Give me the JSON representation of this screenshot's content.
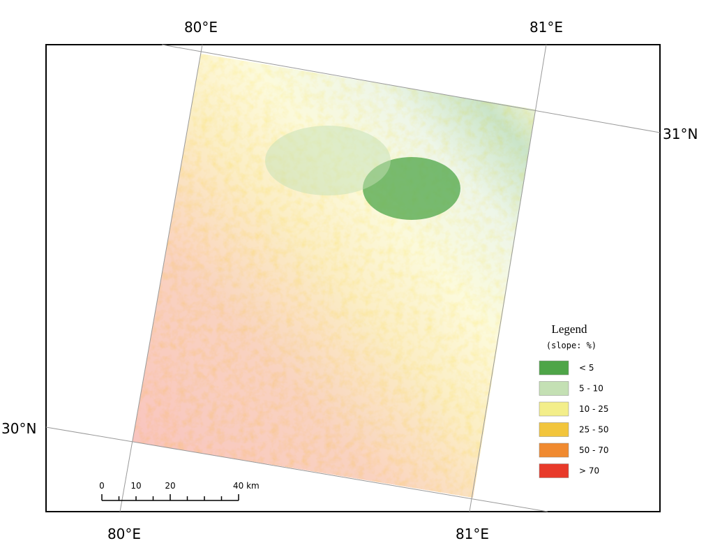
{
  "map": {
    "graticule_labels": {
      "top_west": "80°E",
      "top_east": "81°E",
      "right": "31°N",
      "left": "30°N",
      "bottom_west": "80°E",
      "bottom_east": "81°E"
    },
    "legend": {
      "title": "Legend",
      "subtitle": "(slope: %)",
      "items": [
        {
          "label": "< 5",
          "color": "#4ea548"
        },
        {
          "label": "5 - 10",
          "color": "#c4e0b4"
        },
        {
          "label": "10 - 25",
          "color": "#f3ee8a"
        },
        {
          "label": "25 - 50",
          "color": "#f2c53c"
        },
        {
          "label": "50 - 70",
          "color": "#f08a30"
        },
        {
          "label": "> 70",
          "color": "#e83a2a"
        }
      ]
    },
    "scale_bar": {
      "labels": [
        "0",
        "10",
        "20",
        "40 km"
      ]
    }
  }
}
